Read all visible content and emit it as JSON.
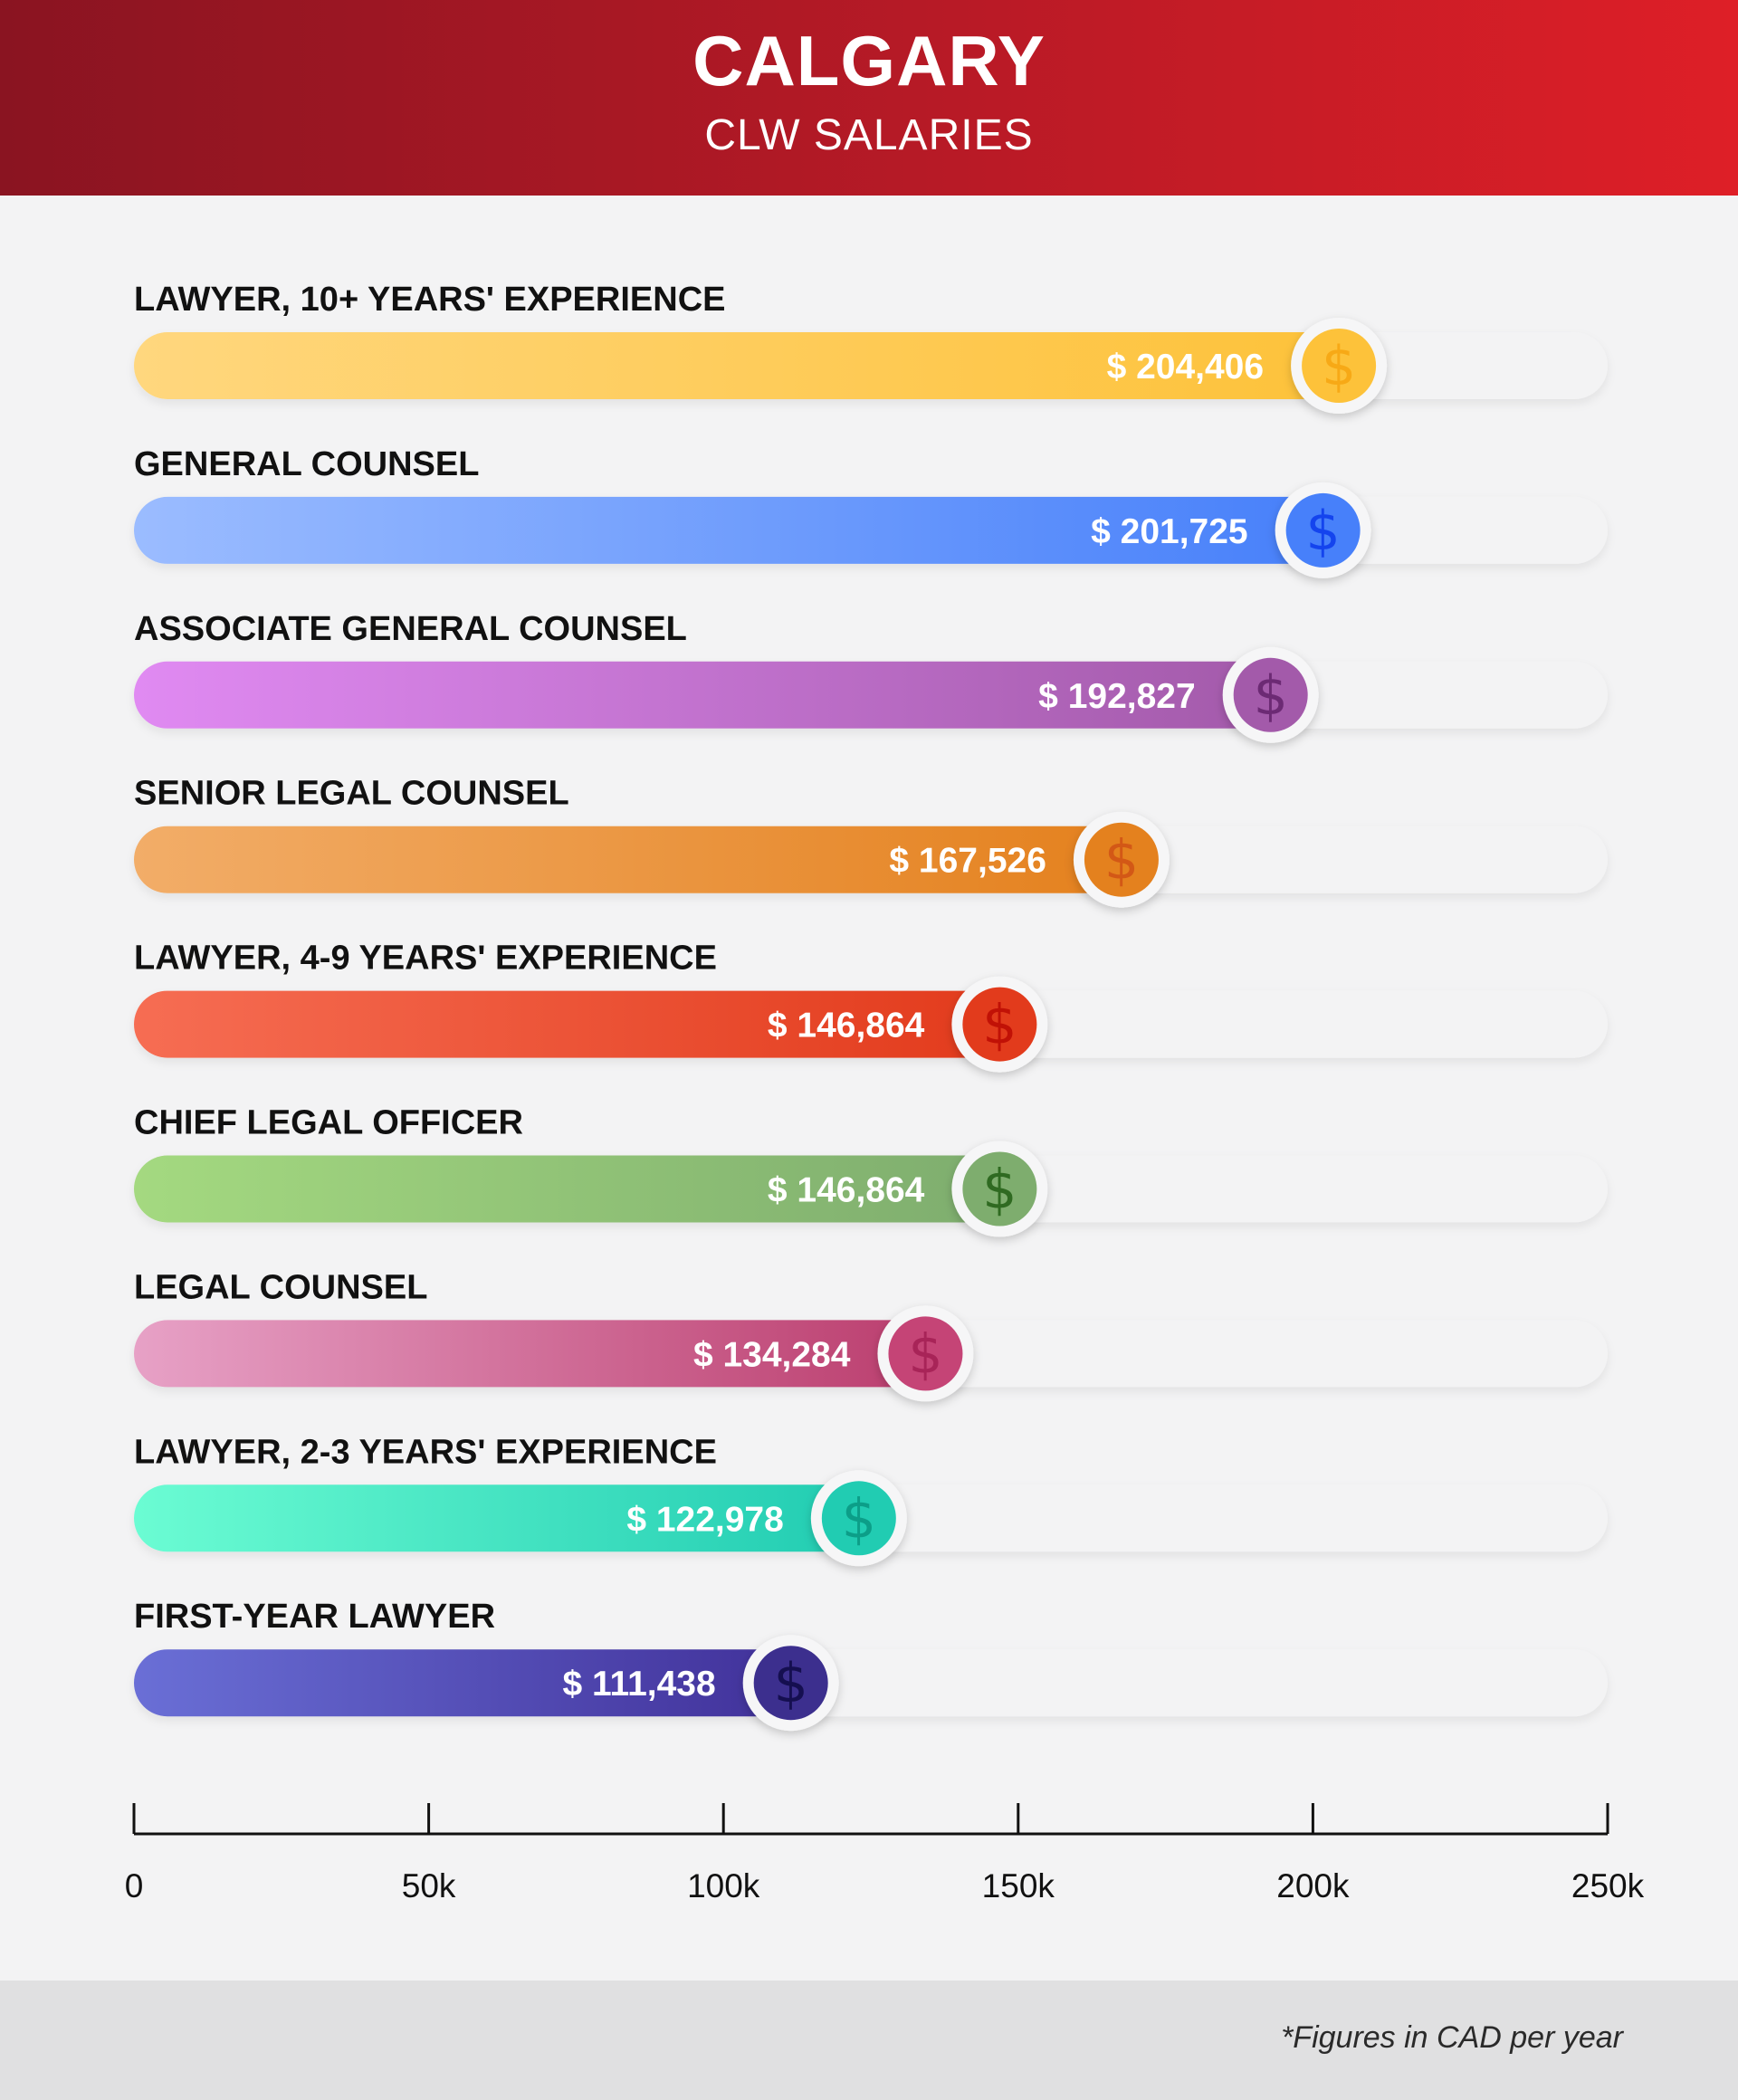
{
  "header": {
    "title": "CALGARY",
    "subtitle": "CLW SALARIES"
  },
  "footer": {
    "note": "*Figures in CAD per year"
  },
  "chart_data": {
    "type": "bar",
    "orientation": "horizontal",
    "title": "CALGARY",
    "subtitle": "CLW SALARIES",
    "xlim": [
      0,
      250000
    ],
    "grid": false,
    "categories": [
      "LAWYER, 10+ YEARS' EXPERIENCE",
      "GENERAL COUNSEL",
      "ASSOCIATE GENERAL COUNSEL",
      "SENIOR LEGAL COUNSEL",
      "LAWYER, 4-9 YEARS' EXPERIENCE",
      "CHIEF LEGAL OFFICER",
      "LEGAL COUNSEL",
      "LAWYER, 2-3 YEARS' EXPERIENCE",
      "FIRST-YEAR LAWYER"
    ],
    "values": [
      204406,
      201725,
      192827,
      167526,
      146864,
      146864,
      134284,
      122978,
      111438
    ],
    "value_labels": [
      "$ 204,406",
      "$ 201,725",
      "$ 192,827",
      "$ 167,526",
      "$ 146,864",
      "$ 146,864",
      "$ 134,284",
      "$ 122,978",
      "$ 111,438"
    ],
    "bar_colors": [
      [
        "#ffd77e",
        "#fdc23a"
      ],
      [
        "#9bbcff",
        "#4780fa"
      ],
      [
        "#e08af2",
        "#a35aaa"
      ],
      [
        "#f2ad68",
        "#e4811e"
      ],
      [
        "#f66d53",
        "#e23b1c"
      ],
      [
        "#a4d980",
        "#7ead6e"
      ],
      [
        "#e7a1c6",
        "#bb3e6e"
      ],
      [
        "#6bfcd3",
        "#21ccb2"
      ],
      [
        "#6a6fd6",
        "#41319a"
      ]
    ],
    "icon_colors": [
      "#fdc23a",
      "#4780fa",
      "#a35aaa",
      "#e4811e",
      "#e23b1c",
      "#7ead6e",
      "#c54476",
      "#21ccb2",
      "#3c2f8e"
    ],
    "icon_symbol_colors": [
      "#f7a916",
      "#1444ee",
      "#6c2a74",
      "#d35816",
      "#c11106",
      "#2f6a21",
      "#a82458",
      "#0c9e88",
      "#150f50"
    ],
    "icon": "dollar-icon",
    "x_ticks": [
      0,
      50000,
      100000,
      150000,
      200000,
      250000
    ],
    "x_tick_labels": [
      "0",
      "50k",
      "100k",
      "150k",
      "200k",
      "250k"
    ]
  }
}
